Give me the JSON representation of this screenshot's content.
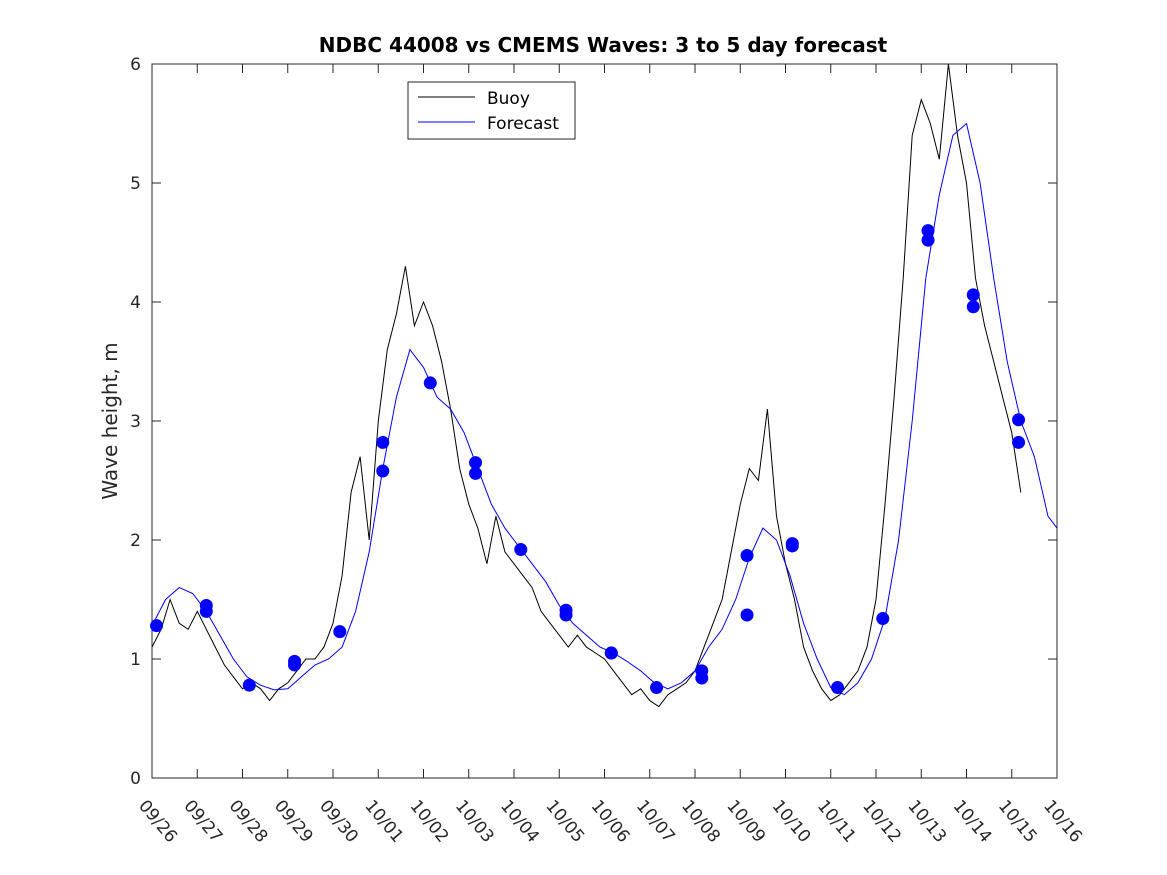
{
  "chart_data": {
    "type": "line",
    "title": "NDBC 44008 vs CMEMS Waves: 3 to 5 day forecast",
    "xlabel": "",
    "ylabel": "Wave height, m",
    "xlim": [
      0,
      20
    ],
    "ylim": [
      0,
      6
    ],
    "yticks": [
      "0",
      "1",
      "2",
      "3",
      "4",
      "5",
      "6"
    ],
    "xtick_labels": [
      "09/26",
      "09/27",
      "09/28",
      "09/29",
      "09/30",
      "10/01",
      "10/02",
      "10/03",
      "10/04",
      "10/05",
      "10/06",
      "10/07",
      "10/08",
      "10/09",
      "10/10",
      "10/11",
      "10/12",
      "10/13",
      "10/14",
      "10/15",
      "10/16"
    ],
    "legend": {
      "position": "top-center",
      "entries": [
        {
          "label": "Buoy",
          "color": "#000000"
        },
        {
          "label": "Forecast",
          "color": "#0000ff"
        }
      ]
    },
    "series": [
      {
        "name": "Buoy",
        "color": "#000000",
        "x": [
          0,
          0.2,
          0.4,
          0.6,
          0.8,
          1.0,
          1.2,
          1.4,
          1.6,
          1.8,
          2.0,
          2.2,
          2.4,
          2.6,
          2.8,
          3.0,
          3.2,
          3.4,
          3.6,
          3.8,
          4.0,
          4.2,
          4.4,
          4.6,
          4.8,
          5.0,
          5.2,
          5.4,
          5.6,
          5.8,
          6.0,
          6.2,
          6.4,
          6.6,
          6.8,
          7.0,
          7.2,
          7.4,
          7.6,
          7.8,
          8.0,
          8.2,
          8.4,
          8.6,
          8.8,
          9.0,
          9.2,
          9.4,
          9.6,
          9.8,
          10.0,
          10.2,
          10.4,
          10.6,
          10.8,
          11.0,
          11.2,
          11.4,
          11.6,
          11.8,
          12.0,
          12.2,
          12.4,
          12.6,
          12.8,
          13.0,
          13.2,
          13.4,
          13.6,
          13.8,
          14.0,
          14.2,
          14.4,
          14.6,
          14.8,
          15.0,
          15.2,
          15.4,
          15.6,
          15.8,
          16.0,
          16.2,
          16.4,
          16.6,
          16.8,
          17.0,
          17.2,
          17.4,
          17.6,
          17.8,
          18.0,
          18.2,
          18.4,
          18.6,
          18.8,
          19.0,
          19.2
        ],
        "y": [
          1.1,
          1.25,
          1.5,
          1.3,
          1.25,
          1.4,
          1.25,
          1.1,
          0.95,
          0.85,
          0.75,
          0.8,
          0.75,
          0.65,
          0.75,
          0.8,
          0.9,
          1.0,
          1.0,
          1.1,
          1.3,
          1.7,
          2.4,
          2.7,
          2.0,
          3.0,
          3.6,
          3.9,
          4.3,
          3.8,
          4.0,
          3.8,
          3.5,
          3.1,
          2.6,
          2.3,
          2.1,
          1.8,
          2.2,
          1.9,
          1.8,
          1.7,
          1.6,
          1.4,
          1.3,
          1.2,
          1.1,
          1.2,
          1.1,
          1.05,
          1.0,
          0.9,
          0.8,
          0.7,
          0.75,
          0.65,
          0.6,
          0.7,
          0.75,
          0.8,
          0.9,
          1.1,
          1.3,
          1.5,
          1.9,
          2.3,
          2.6,
          2.5,
          3.1,
          2.2,
          1.8,
          1.5,
          1.1,
          0.9,
          0.75,
          0.65,
          0.7,
          0.8,
          0.9,
          1.1,
          1.5,
          2.3,
          3.2,
          4.2,
          5.4,
          5.7,
          5.5,
          5.2,
          6.0,
          5.4,
          5.0,
          4.2,
          3.8,
          3.5,
          3.2,
          2.9,
          2.4
        ]
      },
      {
        "name": "Forecast",
        "color": "#0000ff",
        "x": [
          0,
          0.3,
          0.6,
          0.9,
          1.2,
          1.5,
          1.8,
          2.1,
          2.4,
          2.7,
          3.0,
          3.3,
          3.6,
          3.9,
          4.2,
          4.5,
          4.8,
          5.1,
          5.4,
          5.7,
          6.0,
          6.3,
          6.6,
          6.9,
          7.2,
          7.5,
          7.8,
          8.1,
          8.4,
          8.7,
          9.0,
          9.3,
          9.6,
          9.9,
          10.2,
          10.5,
          10.8,
          11.1,
          11.4,
          11.7,
          12.0,
          12.3,
          12.6,
          12.9,
          13.2,
          13.5,
          13.8,
          14.1,
          14.4,
          14.7,
          15.0,
          15.3,
          15.6,
          15.9,
          16.2,
          16.5,
          16.8,
          17.1,
          17.4,
          17.7,
          18.0,
          18.3,
          18.6,
          18.9,
          19.2,
          19.5,
          19.8,
          20.0
        ],
        "y": [
          1.28,
          1.5,
          1.6,
          1.55,
          1.4,
          1.2,
          1.0,
          0.85,
          0.78,
          0.74,
          0.75,
          0.85,
          0.95,
          1.0,
          1.1,
          1.4,
          1.9,
          2.6,
          3.2,
          3.6,
          3.45,
          3.2,
          3.1,
          2.9,
          2.6,
          2.3,
          2.1,
          1.95,
          1.8,
          1.65,
          1.45,
          1.3,
          1.2,
          1.1,
          1.05,
          0.98,
          0.9,
          0.8,
          0.75,
          0.8,
          0.9,
          1.1,
          1.25,
          1.5,
          1.85,
          2.1,
          2.0,
          1.7,
          1.3,
          1.0,
          0.76,
          0.7,
          0.8,
          1.0,
          1.34,
          2.0,
          3.0,
          4.2,
          4.9,
          5.4,
          5.5,
          5.0,
          4.2,
          3.5,
          3.0,
          2.7,
          2.2,
          2.1
        ]
      },
      {
        "name": "Forecast points",
        "color": "#0000ff",
        "type": "scatter",
        "x": [
          0.1,
          1.2,
          1.2,
          2.15,
          3.15,
          3.15,
          4.15,
          5.1,
          5.1,
          6.15,
          7.15,
          7.15,
          8.15,
          9.15,
          9.15,
          10.15,
          10.15,
          11.15,
          12.15,
          12.15,
          13.15,
          13.15,
          14.15,
          14.15,
          15.15,
          16.15,
          17.15,
          17.15,
          18.15,
          18.15,
          19.15,
          19.15
        ],
        "y": [
          1.28,
          1.45,
          1.4,
          0.78,
          0.98,
          0.95,
          1.23,
          2.82,
          2.58,
          3.32,
          2.65,
          2.56,
          1.92,
          1.41,
          1.37,
          1.05,
          1.05,
          0.76,
          0.9,
          0.84,
          1.87,
          1.37,
          1.97,
          1.95,
          0.76,
          1.34,
          4.6,
          4.52,
          4.06,
          3.96,
          3.01,
          2.82
        ]
      }
    ]
  }
}
